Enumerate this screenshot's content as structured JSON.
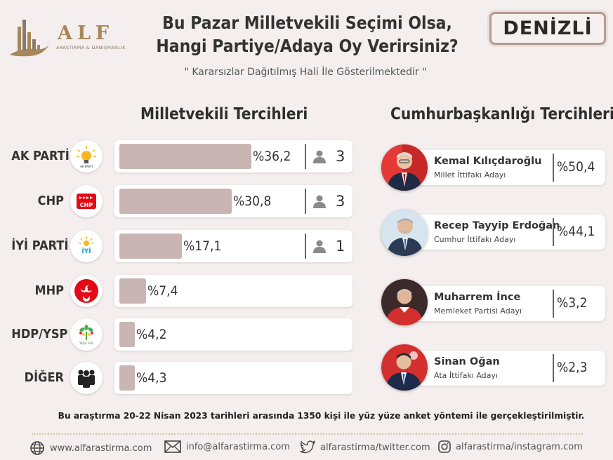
{
  "logo": {
    "brand": "ALF",
    "tagline": "ARAŞTIRMA & DANIŞMANLIK"
  },
  "title_line1": "Bu Pazar Milletvekili Seçimi Olsa,",
  "title_line2": "Hangi Partiye/Adaya Oy Verirsiniz?",
  "subtitle": "\" Kararsızlar Dağıtılmış Hali İle Gösterilmektedir \"",
  "city": "DENİZLİ",
  "left_section_title": "Milletvekili Tercihleri",
  "right_section_title": "Cumhurbaşkanlığı Tercihleri",
  "chart_data": [
    {
      "type": "bar",
      "title": "Milletvekili Tercihleri",
      "categories": [
        "AK PARTİ",
        "CHP",
        "İYİ PARTİ",
        "MHP",
        "HDP/YSP",
        "DİĞER"
      ],
      "values": [
        36.2,
        30.8,
        17.1,
        7.4,
        4.2,
        4.3
      ],
      "value_labels": [
        "%36,2",
        "%30,8",
        "%17,1",
        "%7,4",
        "%4,2",
        "%4,3"
      ],
      "seats": [
        3,
        3,
        1,
        null,
        null,
        null
      ],
      "xlim": [
        0,
        50
      ],
      "bar_color": "#c9b5b3"
    },
    {
      "type": "table",
      "title": "Cumhurbaşkanlığı Tercihleri",
      "candidates": [
        {
          "name": "Kemal Kılıçdaroğlu",
          "alliance": "Millet İttifakı Adayı",
          "value": 50.4,
          "label": "%50,4"
        },
        {
          "name": "Recep Tayyip Erdoğan",
          "alliance": "Cumhur İttifakı Adayı",
          "value": 44.1,
          "label": "%44,1"
        },
        {
          "name": "Muharrem İnce",
          "alliance": "Memleket Partisi Adayı",
          "value": 3.2,
          "label": "%3,2"
        },
        {
          "name": "Sinan Oğan",
          "alliance": "Ata İttifakı Adayı",
          "value": 2.3,
          "label": "%2,3"
        }
      ]
    }
  ],
  "footnote": "Bu araştırma 20-22 Nisan 2023 tarihleri arasında 1350 kişi ile yüz yüze anket yöntemi ile gerçekleştirilmiştir.",
  "contacts": {
    "web": "www.alfarastirma.com",
    "email": "info@alfarastirma.com",
    "twitter": "alfarastirma/twitter.com",
    "instagram": "alfarastirma/instagram.com"
  },
  "icons": [
    "seat-person-icon",
    "globe-icon",
    "mail-icon",
    "twitter-bird-icon",
    "instagram-icon"
  ]
}
